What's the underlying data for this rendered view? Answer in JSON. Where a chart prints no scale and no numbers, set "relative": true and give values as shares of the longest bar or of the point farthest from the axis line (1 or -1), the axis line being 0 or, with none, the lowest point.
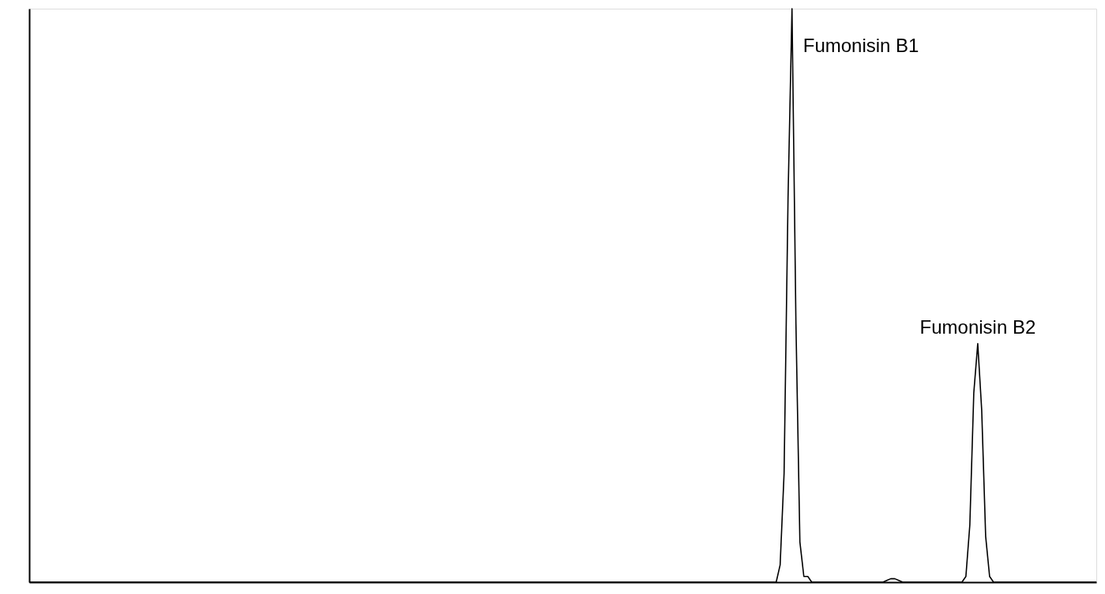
{
  "chart_data": {
    "type": "line",
    "relative": true,
    "tick_labels": false,
    "grid": false,
    "marker": "none",
    "line_style": "solid",
    "categories": [
      null,
      null,
      null,
      null,
      null,
      null,
      null,
      null,
      null,
      null,
      null,
      null,
      null,
      null,
      null,
      null,
      null,
      null,
      null,
      null,
      null,
      null,
      null,
      null,
      null,
      null,
      null,
      null,
      null,
      null,
      null,
      null,
      null,
      null,
      null,
      null,
      null,
      null,
      null,
      null,
      null,
      null,
      null,
      null,
      null,
      null,
      null,
      null,
      null,
      null,
      null,
      null,
      null,
      null,
      null,
      null,
      null,
      null,
      null,
      null,
      null,
      null,
      null,
      null,
      null,
      null,
      null,
      null,
      null,
      null,
      null,
      null,
      null,
      null,
      null,
      null,
      null,
      null,
      null,
      null,
      null,
      null,
      null,
      null,
      null,
      null,
      null,
      null,
      null,
      null,
      null,
      null,
      null,
      null,
      null,
      null,
      null,
      null,
      null,
      null,
      null,
      null,
      null,
      null,
      null,
      null,
      null,
      null,
      null,
      null,
      null,
      null,
      null,
      null,
      null,
      null,
      null,
      null,
      null,
      null,
      null,
      null,
      null,
      null,
      null,
      null,
      null,
      null,
      null,
      null,
      null,
      null,
      null,
      null,
      null,
      null,
      null,
      null,
      null,
      null,
      null,
      null,
      null,
      null,
      null,
      null,
      null,
      null,
      null,
      null,
      null,
      null,
      null,
      null,
      null,
      null,
      null,
      null,
      null,
      null,
      null,
      null,
      null,
      null,
      null,
      null,
      null,
      null,
      null,
      null,
      null,
      null,
      null,
      null,
      null,
      null,
      null,
      null,
      null,
      null,
      null,
      null,
      null,
      null,
      null,
      null,
      null,
      null,
      null,
      null,
      null,
      null,
      null,
      null,
      null,
      null,
      null,
      null,
      null,
      null,
      null,
      null,
      null,
      null,
      null,
      null,
      null,
      null,
      null,
      null,
      null,
      null,
      null,
      null,
      null,
      null,
      null,
      null,
      null,
      null,
      null,
      null,
      null,
      null,
      null,
      null,
      null,
      null,
      null,
      null,
      null,
      null,
      null,
      null,
      null,
      null,
      null,
      null,
      null,
      null,
      null,
      null,
      null,
      null,
      null,
      null,
      null,
      null,
      null,
      null,
      null,
      null,
      null,
      null,
      null,
      null,
      null,
      null,
      null,
      null,
      null,
      null,
      null,
      null,
      null,
      null,
      null,
      null,
      null,
      null,
      null
    ],
    "series": [
      {
        "color": "#000000",
        "values": [
          0,
          0,
          0,
          0,
          0,
          0,
          0,
          0,
          0,
          0,
          0,
          0,
          0,
          0,
          0,
          0,
          0,
          0,
          0,
          0,
          0,
          0,
          0,
          0,
          0,
          0,
          0,
          0,
          0,
          0,
          0,
          0,
          0,
          0,
          0,
          0,
          0,
          0,
          0,
          0,
          0,
          0,
          0,
          0,
          0,
          0,
          0,
          0,
          0,
          0,
          0,
          0,
          0,
          0,
          0,
          0,
          0,
          0,
          0,
          0,
          0,
          0,
          0,
          0,
          0,
          0,
          0,
          0,
          0,
          0,
          0,
          0,
          0,
          0,
          0,
          0,
          0,
          0,
          0,
          0,
          0,
          0,
          0,
          0,
          0,
          0,
          0,
          0,
          0,
          0,
          0,
          0,
          0,
          0,
          0,
          0,
          0,
          0,
          0,
          0,
          0,
          0,
          0,
          0,
          0,
          0,
          0,
          0,
          0,
          0,
          0,
          0,
          0,
          0,
          0,
          0,
          0,
          0,
          0,
          0,
          0,
          0,
          0,
          0,
          0,
          0,
          0,
          0,
          0,
          0,
          0,
          0,
          0,
          0,
          0,
          0,
          0,
          0,
          0,
          0,
          0,
          0,
          0,
          0,
          0,
          0,
          0,
          0,
          0,
          0,
          0,
          0,
          0,
          0,
          0,
          0,
          0,
          0,
          0,
          0,
          0,
          0,
          0,
          0,
          0,
          0,
          0,
          0,
          0,
          0,
          0,
          0,
          0,
          0,
          0,
          0,
          0,
          0,
          0,
          0,
          0,
          0,
          0,
          0,
          0,
          0,
          0,
          0,
          0,
          0,
          0.03,
          0.19,
          0.67,
          1,
          0.45,
          0.07,
          0.01,
          0.01,
          0,
          0,
          0,
          0,
          0,
          0,
          0,
          0,
          0,
          0,
          0,
          0,
          0,
          0,
          0,
          0,
          0,
          0,
          0,
          0.003,
          0.006,
          0.006,
          0.003,
          0,
          0,
          0,
          0,
          0,
          0,
          0,
          0,
          0,
          0,
          0,
          0,
          0,
          0,
          0,
          0,
          0.01,
          0.1,
          0.33,
          0.416,
          0.3,
          0.08,
          0.01,
          0,
          0,
          0,
          0,
          0,
          0,
          0,
          0,
          0,
          0,
          0,
          0,
          0,
          0,
          0,
          0,
          0,
          0,
          0,
          0,
          0,
          0,
          0,
          0,
          0,
          0,
          0
        ]
      }
    ],
    "annotations": [
      "Fumonisin B1",
      "Fumonisin B2"
    ]
  }
}
